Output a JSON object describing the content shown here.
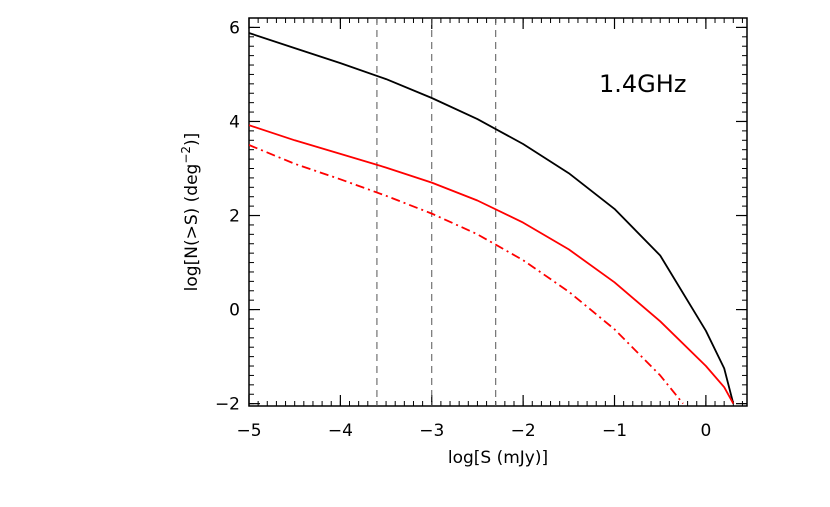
{
  "chart_data": {
    "type": "line",
    "xlabel": "log[S (mJy)]",
    "ylabel_parts": {
      "main": "log[N(>S) (deg",
      "sup": "−2",
      "end": ")]"
    },
    "annotation": "1.4GHz",
    "xlim": [
      -5,
      0.45
    ],
    "ylim": [
      -2.05,
      6.2
    ],
    "x_ticks": [
      -5,
      -4,
      -3,
      -2,
      -1,
      0
    ],
    "x_tick_labels": [
      "−5",
      "−4",
      "−3",
      "−2",
      "−1",
      "0"
    ],
    "y_ticks": [
      -2,
      0,
      2,
      4,
      6
    ],
    "y_tick_labels": [
      "−2",
      "0",
      "2",
      "4",
      "6"
    ],
    "x_minor_step": 0.1,
    "y_minor_step": 0.2,
    "vlines": [
      -3.6,
      -3.0,
      -2.3
    ],
    "grid": false,
    "series": [
      {
        "color": "#000000",
        "style": "solid",
        "x": [
          -5,
          -4.5,
          -4,
          -3.5,
          -3,
          -2.5,
          -2,
          -1.5,
          -1,
          -0.5,
          0,
          0.2,
          0.3
        ],
        "y": [
          5.88,
          5.56,
          5.24,
          4.9,
          4.5,
          4.05,
          3.52,
          2.9,
          2.14,
          1.15,
          -0.45,
          -1.25,
          -2.0
        ]
      },
      {
        "color": "#ff0000",
        "style": "solid",
        "x": [
          -5,
          -4.5,
          -4,
          -3.5,
          -3,
          -2.5,
          -2,
          -1.5,
          -1,
          -0.5,
          0,
          0.2,
          0.3
        ],
        "y": [
          3.92,
          3.6,
          3.31,
          3.02,
          2.7,
          2.32,
          1.85,
          1.28,
          0.58,
          -0.25,
          -1.2,
          -1.65,
          -2.0
        ]
      },
      {
        "color": "#ff0000",
        "style": "dashdot",
        "x": [
          -5,
          -4.5,
          -4,
          -3.5,
          -3,
          -2.5,
          -2,
          -1.5,
          -1,
          -0.5,
          -0.25
        ],
        "y": [
          3.5,
          3.1,
          2.77,
          2.42,
          2.04,
          1.6,
          1.05,
          0.38,
          -0.42,
          -1.4,
          -2.0
        ]
      }
    ]
  },
  "colors": {
    "axis": "#000000",
    "vline": "#555555"
  }
}
